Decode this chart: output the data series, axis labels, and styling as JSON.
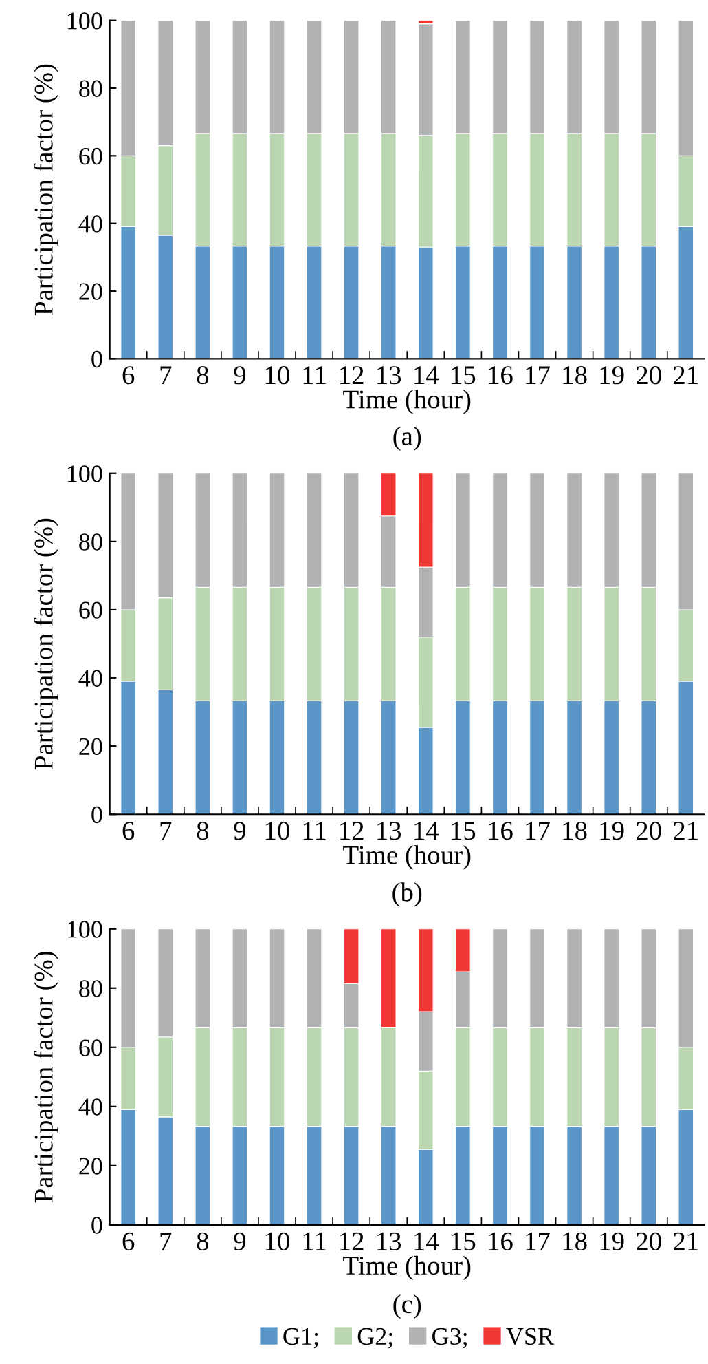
{
  "chart_data": [
    {
      "type": "bar",
      "stacked": true,
      "xlabel": "Time (hour)",
      "ylabel": "Participation factor (%)",
      "annotations": [
        "(a)"
      ],
      "categories": [
        "6",
        "7",
        "8",
        "9",
        "10",
        "11",
        "12",
        "13",
        "14",
        "15",
        "16",
        "17",
        "18",
        "19",
        "20",
        "21"
      ],
      "ylim": [
        0,
        100
      ],
      "yticks": [
        0,
        20,
        40,
        60,
        80,
        100
      ],
      "grid": false,
      "legend": false,
      "series": [
        {
          "color": "#5b96c8",
          "values": [
            39,
            36.5,
            33.3,
            33.3,
            33.3,
            33.3,
            33.3,
            33.3,
            33,
            33.3,
            33.3,
            33.3,
            33.3,
            33.3,
            33.3,
            39
          ]
        },
        {
          "color": "#bad7b2",
          "values": [
            21,
            26.5,
            33.3,
            33.3,
            33.3,
            33.3,
            33.3,
            33.3,
            33,
            33.3,
            33.3,
            33.3,
            33.3,
            33.3,
            33.3,
            21
          ]
        },
        {
          "color": "#b1b2b4",
          "values": [
            40,
            37,
            33.4,
            33.4,
            33.4,
            33.4,
            33.4,
            33.4,
            33,
            33.4,
            33.4,
            33.4,
            33.4,
            33.4,
            33.4,
            40
          ]
        },
        {
          "color": "#ef3835",
          "values": [
            null,
            null,
            null,
            null,
            null,
            null,
            null,
            null,
            1,
            null,
            null,
            null,
            null,
            null,
            null,
            null
          ]
        }
      ]
    },
    {
      "type": "bar",
      "stacked": true,
      "xlabel": "Time (hour)",
      "ylabel": "Participation factor (%)",
      "annotations": [
        "(b)"
      ],
      "categories": [
        "6",
        "7",
        "8",
        "9",
        "10",
        "11",
        "12",
        "13",
        "14",
        "15",
        "16",
        "17",
        "18",
        "19",
        "20",
        "21"
      ],
      "ylim": [
        0,
        100
      ],
      "yticks": [
        0,
        20,
        40,
        60,
        80,
        100
      ],
      "grid": false,
      "legend": false,
      "series": [
        {
          "color": "#5b96c8",
          "values": [
            39,
            36.5,
            33.3,
            33.3,
            33.3,
            33.3,
            33.3,
            33.3,
            25.5,
            33.3,
            33.3,
            33.3,
            33.3,
            33.3,
            33.3,
            39
          ]
        },
        {
          "color": "#bad7b2",
          "values": [
            21,
            27,
            33.3,
            33.3,
            33.3,
            33.3,
            33.3,
            33.3,
            26.5,
            33.3,
            33.3,
            33.3,
            33.3,
            33.3,
            33.3,
            21
          ]
        },
        {
          "color": "#b1b2b4",
          "values": [
            40,
            36.5,
            33.4,
            33.4,
            33.4,
            33.4,
            33.4,
            20.9,
            20.5,
            33.4,
            33.4,
            33.4,
            33.4,
            33.4,
            33.4,
            40
          ]
        },
        {
          "color": "#ef3835",
          "values": [
            null,
            null,
            null,
            null,
            null,
            null,
            null,
            12.5,
            27.5,
            null,
            null,
            null,
            null,
            null,
            null,
            null
          ]
        }
      ]
    },
    {
      "type": "bar",
      "stacked": true,
      "xlabel": "Time (hour)",
      "ylabel": "Participation factor (%)",
      "annotations": [
        "(c)"
      ],
      "categories": [
        "6",
        "7",
        "8",
        "9",
        "10",
        "11",
        "12",
        "13",
        "14",
        "15",
        "16",
        "17",
        "18",
        "19",
        "20",
        "21"
      ],
      "ylim": [
        0,
        100
      ],
      "yticks": [
        0,
        20,
        40,
        60,
        80,
        100
      ],
      "grid": false,
      "legend": "bottom",
      "series": [
        {
          "name": "G1;",
          "color": "#5b96c8",
          "values": [
            39,
            36.5,
            33.3,
            33.3,
            33.3,
            33.3,
            33.3,
            33.3,
            25.5,
            33.3,
            33.3,
            33.3,
            33.3,
            33.3,
            33.3,
            39
          ]
        },
        {
          "name": "G2;",
          "color": "#bad7b2",
          "values": [
            21,
            27,
            33.3,
            33.3,
            33.3,
            33.3,
            33.3,
            33.3,
            26.5,
            33.3,
            33.3,
            33.3,
            33.3,
            33.3,
            33.3,
            21
          ]
        },
        {
          "name": "G3;",
          "color": "#b1b2b4",
          "values": [
            40,
            36.5,
            33.4,
            33.4,
            33.4,
            33.4,
            14.9,
            null,
            20,
            18.9,
            33.4,
            33.4,
            33.4,
            33.4,
            33.4,
            40
          ]
        },
        {
          "name": "VSR",
          "color": "#ef3835",
          "values": [
            null,
            null,
            null,
            null,
            null,
            null,
            18.5,
            33.4,
            28,
            14.5,
            null,
            null,
            null,
            null,
            null,
            null
          ]
        }
      ]
    }
  ]
}
